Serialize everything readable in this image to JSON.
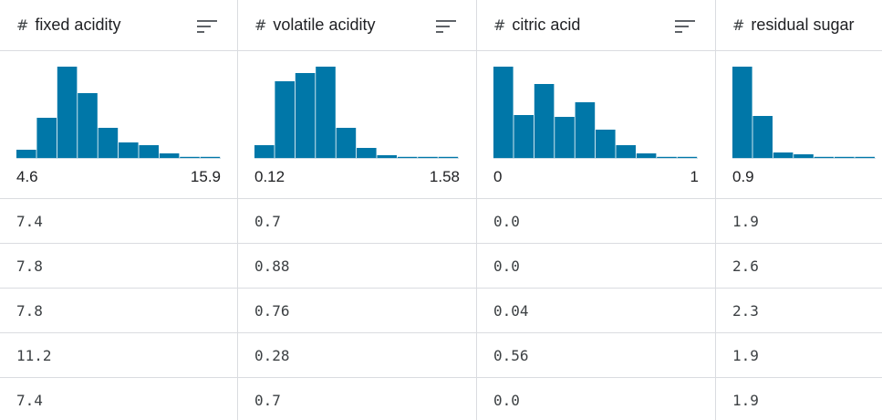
{
  "accent_color": "#0077a8",
  "sort_icon": "sort-lines-icon",
  "type_icon": "hash-icon",
  "columns": [
    {
      "name": "fixed acidity",
      "type_symbol": "#",
      "histogram": [
        0.09,
        0.44,
        1.0,
        0.71,
        0.33,
        0.17,
        0.14,
        0.05,
        0.0,
        0.01
      ],
      "min": "4.6",
      "max": "15.9",
      "values": [
        "7.4",
        "7.8",
        "7.8",
        "11.2",
        "7.4"
      ]
    },
    {
      "name": "volatile acidity",
      "type_symbol": "#",
      "histogram": [
        0.14,
        0.84,
        0.93,
        1.0,
        0.33,
        0.11,
        0.03,
        0.005,
        0.005,
        0.005
      ],
      "min": "0.12",
      "max": "1.58",
      "values": [
        "0.7",
        "0.88",
        "0.76",
        "0.28",
        "0.7"
      ]
    },
    {
      "name": "citric acid",
      "type_symbol": "#",
      "histogram": [
        1.0,
        0.47,
        0.81,
        0.45,
        0.61,
        0.31,
        0.14,
        0.05,
        0.0,
        0.01
      ],
      "min": "0",
      "max": "1",
      "values": [
        "0.0",
        "0.0",
        "0.04",
        "0.56",
        "0.0"
      ]
    },
    {
      "name": "residual sugar",
      "type_symbol": "#",
      "histogram": [
        1.0,
        0.46,
        0.06,
        0.04,
        0.005,
        0.005,
        0.005
      ],
      "min": "0.9",
      "max": "",
      "values": [
        "1.9",
        "2.6",
        "2.3",
        "1.9",
        "1.9"
      ]
    }
  ]
}
